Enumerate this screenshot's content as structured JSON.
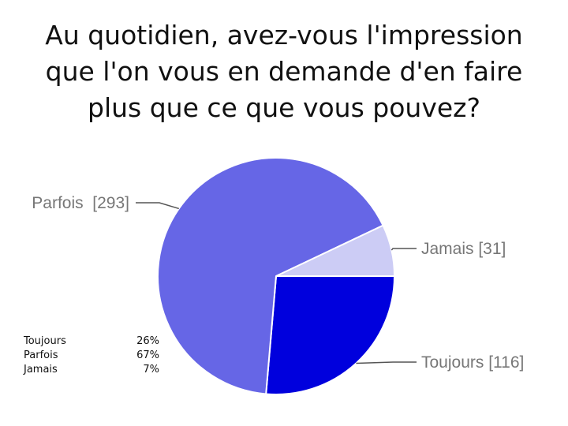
{
  "chart_data": {
    "type": "pie",
    "title_lines": [
      "Au quotidien, avez-vous l'impression",
      "que l'on vous en demande d'en faire",
      "plus que ce que vous pouvez?"
    ],
    "slices": [
      {
        "label": "Toujours",
        "value": 116,
        "count_label": "Toujours [116]",
        "color": "#0000dd"
      },
      {
        "label": "Parfois",
        "value": 293,
        "count_label": "Parfois  [293]",
        "color": "#6666e6"
      },
      {
        "label": "Jamais",
        "value": 31,
        "count_label": "Jamais [31]",
        "color": "#ccccf5"
      }
    ],
    "table": [
      {
        "category": "Toujours",
        "percent": "26%"
      },
      {
        "category": "Parfois",
        "percent": "67%"
      },
      {
        "category": "Jamais",
        "percent": "7%"
      }
    ]
  }
}
